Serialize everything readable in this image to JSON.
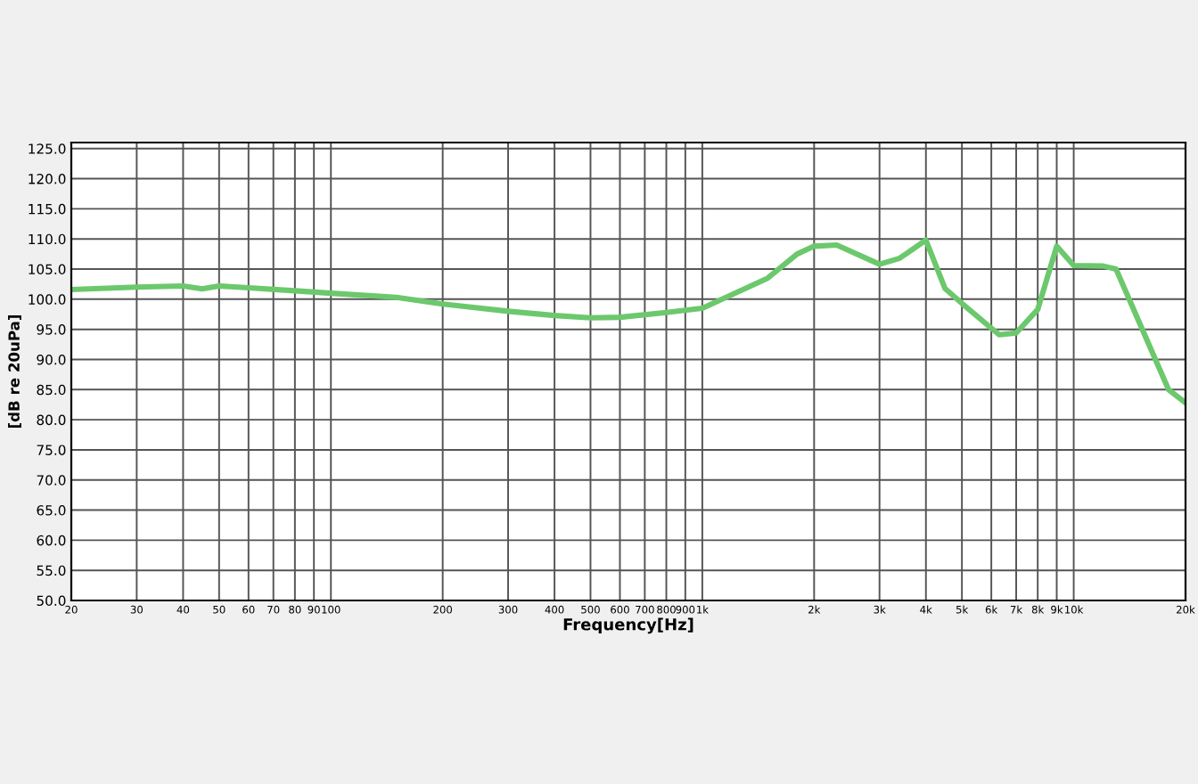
{
  "chart_data": {
    "type": "line",
    "xlabel": "Frequency[Hz]",
    "ylabel": "[dB re 20uPa]",
    "log": "x",
    "grid": true,
    "marker": "none",
    "line_style": "solid",
    "x": [
      20,
      30,
      40,
      45,
      50,
      60,
      80,
      100,
      150,
      200,
      300,
      400,
      500,
      600,
      800,
      1000,
      1500,
      1800,
      2000,
      2300,
      3000,
      3400,
      4000,
      4500,
      5000,
      6300,
      7000,
      8000,
      9000,
      10000,
      12000,
      13000,
      18000,
      20000
    ],
    "series": [
      {
        "color": "#6cc86c",
        "values": [
          101.6,
          102.0,
          102.2,
          101.7,
          102.2,
          101.9,
          101.4,
          101.0,
          100.3,
          99.2,
          98.0,
          97.3,
          96.9,
          97.0,
          97.8,
          98.5,
          103.5,
          107.5,
          108.8,
          109.0,
          105.8,
          106.8,
          109.8,
          101.8,
          99.3,
          94.1,
          94.4,
          98.3,
          108.8,
          105.6,
          105.5,
          105.0,
          85.0,
          82.8
        ]
      }
    ],
    "xlim": [
      20,
      20000
    ],
    "ylim": [
      50,
      126
    ],
    "xticks": [
      20,
      30,
      40,
      50,
      60,
      70,
      80,
      90,
      100,
      200,
      300,
      400,
      500,
      600,
      700,
      800,
      900,
      {
        "value": 1000,
        "label": "1k"
      },
      {
        "value": 2000,
        "label": "2k"
      },
      {
        "value": 3000,
        "label": "3k"
      },
      {
        "value": 4000,
        "label": "4k"
      },
      {
        "value": 5000,
        "label": "5k"
      },
      {
        "value": 6000,
        "label": "6k"
      },
      {
        "value": 7000,
        "label": "7k"
      },
      {
        "value": 8000,
        "label": "8k"
      },
      {
        "value": 9000,
        "label": "9k"
      },
      {
        "value": 10000,
        "label": "10k"
      },
      {
        "value": 20000,
        "label": "20k"
      }
    ],
    "yticks": [
      {
        "value": 50,
        "label": "50.0"
      },
      {
        "value": 55,
        "label": "55.0"
      },
      {
        "value": 60,
        "label": "60.0"
      },
      {
        "value": 65,
        "label": "65.0"
      },
      {
        "value": 70,
        "label": "70.0"
      },
      {
        "value": 75,
        "label": "75.0"
      },
      {
        "value": 80,
        "label": "80.0"
      },
      {
        "value": 85,
        "label": "85.0"
      },
      {
        "value": 90,
        "label": "90.0"
      },
      {
        "value": 95,
        "label": "95.0"
      },
      {
        "value": 100,
        "label": "100.0"
      },
      {
        "value": 105,
        "label": "105.0"
      },
      {
        "value": 110,
        "label": "110.0"
      },
      {
        "value": 115,
        "label": "115.0"
      },
      {
        "value": 120,
        "label": "120.0"
      },
      {
        "value": 125,
        "label": "125.0"
      }
    ]
  }
}
